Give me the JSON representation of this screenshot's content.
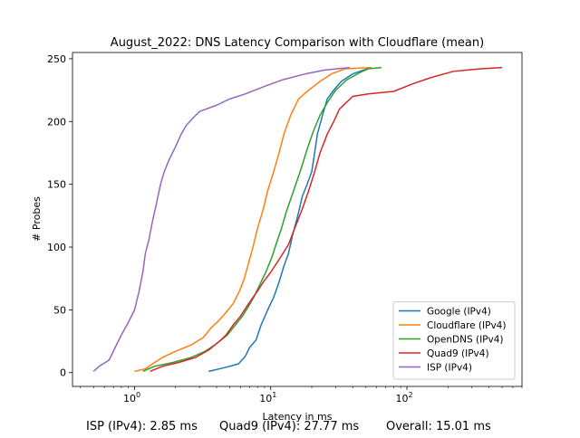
{
  "chart_data": {
    "type": "line",
    "title": "August_2022: DNS Latency Comparison with Cloudflare (mean)",
    "xlabel": "Latency in ms",
    "ylabel": "# Probes",
    "x_scale": "log",
    "xlim": [
      0.35,
      700
    ],
    "ylim": [
      -11,
      255
    ],
    "x_ticks": [
      1,
      10,
      100
    ],
    "x_tick_labels": [
      "10^0",
      "10^1",
      "10^2"
    ],
    "y_ticks": [
      0,
      50,
      100,
      150,
      200,
      250
    ],
    "y_tick_labels": [
      "0",
      "50",
      "100",
      "150",
      "200",
      "250"
    ],
    "grid": false,
    "legend_position": "lower right",
    "series": [
      {
        "name": "Google (IPv4)",
        "color": "#1f77b4",
        "points": [
          [
            3.5,
            1
          ],
          [
            4.2,
            3
          ],
          [
            5.0,
            5
          ],
          [
            5.8,
            7
          ],
          [
            6.5,
            13
          ],
          [
            7.0,
            20
          ],
          [
            7.8,
            26
          ],
          [
            8.5,
            38
          ],
          [
            9.5,
            50
          ],
          [
            10.5,
            60
          ],
          [
            11.5,
            72
          ],
          [
            12.5,
            85
          ],
          [
            13.5,
            95
          ],
          [
            14.5,
            110
          ],
          [
            15.8,
            125
          ],
          [
            17.0,
            140
          ],
          [
            18.5,
            150
          ],
          [
            20.0,
            160
          ],
          [
            21.0,
            175
          ],
          [
            22.0,
            190
          ],
          [
            24.0,
            205
          ],
          [
            26.0,
            218
          ],
          [
            29.0,
            225
          ],
          [
            33.0,
            232
          ],
          [
            40.0,
            238
          ],
          [
            48.0,
            241
          ],
          [
            55.0,
            243
          ]
        ]
      },
      {
        "name": "Cloudflare (IPv4)",
        "color": "#ff7f0e",
        "points": [
          [
            1.0,
            1
          ],
          [
            1.2,
            3
          ],
          [
            1.4,
            8
          ],
          [
            1.6,
            12
          ],
          [
            2.0,
            17
          ],
          [
            2.6,
            22
          ],
          [
            3.2,
            28
          ],
          [
            3.6,
            35
          ],
          [
            4.2,
            42
          ],
          [
            4.7,
            48
          ],
          [
            5.3,
            55
          ],
          [
            5.9,
            65
          ],
          [
            6.4,
            75
          ],
          [
            6.9,
            88
          ],
          [
            7.4,
            100
          ],
          [
            8.0,
            115
          ],
          [
            8.8,
            130
          ],
          [
            9.5,
            145
          ],
          [
            10.5,
            160
          ],
          [
            11.5,
            175
          ],
          [
            12.5,
            190
          ],
          [
            14.0,
            205
          ],
          [
            16.0,
            218
          ],
          [
            19.0,
            225
          ],
          [
            23.0,
            232
          ],
          [
            28.0,
            238
          ],
          [
            35.0,
            242
          ],
          [
            55.0,
            243
          ]
        ]
      },
      {
        "name": "OpenDNS (IPv4)",
        "color": "#2ca02c",
        "points": [
          [
            1.15,
            1
          ],
          [
            1.4,
            5
          ],
          [
            1.9,
            8
          ],
          [
            2.6,
            12
          ],
          [
            3.3,
            17
          ],
          [
            4.0,
            23
          ],
          [
            4.8,
            30
          ],
          [
            5.5,
            38
          ],
          [
            6.2,
            45
          ],
          [
            6.8,
            52
          ],
          [
            7.5,
            60
          ],
          [
            8.3,
            70
          ],
          [
            9.2,
            80
          ],
          [
            10.2,
            92
          ],
          [
            11.0,
            103
          ],
          [
            12.0,
            115
          ],
          [
            13.0,
            128
          ],
          [
            14.2,
            140
          ],
          [
            15.5,
            152
          ],
          [
            17.0,
            165
          ],
          [
            18.5,
            178
          ],
          [
            20.5,
            192
          ],
          [
            23.0,
            205
          ],
          [
            26.0,
            215
          ],
          [
            30.0,
            225
          ],
          [
            36.0,
            233
          ],
          [
            45.0,
            239
          ],
          [
            52.0,
            242
          ],
          [
            65.0,
            243
          ]
        ]
      },
      {
        "name": "Quad9 (IPv4)",
        "color": "#d62728",
        "points": [
          [
            1.3,
            1
          ],
          [
            1.6,
            5
          ],
          [
            2.1,
            8
          ],
          [
            2.8,
            12
          ],
          [
            3.5,
            18
          ],
          [
            4.2,
            25
          ],
          [
            4.7,
            30
          ],
          [
            5.3,
            38
          ],
          [
            6.0,
            45
          ],
          [
            6.6,
            52
          ],
          [
            7.2,
            58
          ],
          [
            8.0,
            65
          ],
          [
            8.8,
            72
          ],
          [
            10.0,
            80
          ],
          [
            11.5,
            90
          ],
          [
            13.5,
            102
          ],
          [
            15.0,
            115
          ],
          [
            17.0,
            130
          ],
          [
            19.0,
            145
          ],
          [
            21.0,
            160
          ],
          [
            23.0,
            175
          ],
          [
            26.0,
            190
          ],
          [
            29.0,
            200
          ],
          [
            32.0,
            210
          ],
          [
            40.0,
            220
          ],
          [
            52.0,
            222
          ],
          [
            80.0,
            224
          ],
          [
            110.0,
            230
          ],
          [
            150.0,
            235
          ],
          [
            220.0,
            240
          ],
          [
            350.0,
            242
          ],
          [
            500.0,
            243
          ]
        ]
      },
      {
        "name": "ISP (IPv4)",
        "color": "#9467bd",
        "points": [
          [
            0.5,
            1
          ],
          [
            0.55,
            5
          ],
          [
            0.65,
            10
          ],
          [
            0.72,
            20
          ],
          [
            0.8,
            30
          ],
          [
            0.9,
            40
          ],
          [
            1.0,
            50
          ],
          [
            1.08,
            65
          ],
          [
            1.15,
            80
          ],
          [
            1.2,
            95
          ],
          [
            1.27,
            105
          ],
          [
            1.35,
            120
          ],
          [
            1.45,
            135
          ],
          [
            1.55,
            150
          ],
          [
            1.65,
            160
          ],
          [
            1.8,
            170
          ],
          [
            2.0,
            180
          ],
          [
            2.2,
            190
          ],
          [
            2.4,
            197
          ],
          [
            2.7,
            203
          ],
          [
            3.0,
            208
          ],
          [
            4.0,
            213
          ],
          [
            5.0,
            218
          ],
          [
            6.5,
            222
          ],
          [
            9.0,
            228
          ],
          [
            12.0,
            233
          ],
          [
            18.0,
            238
          ],
          [
            25.0,
            241
          ],
          [
            38.0,
            243
          ]
        ]
      }
    ]
  },
  "footer": {
    "isp": "ISP (IPv4): 2.85 ms",
    "quad9": "Quad9 (IPv4): 27.77 ms",
    "overall": "Overall: 15.01 ms"
  }
}
